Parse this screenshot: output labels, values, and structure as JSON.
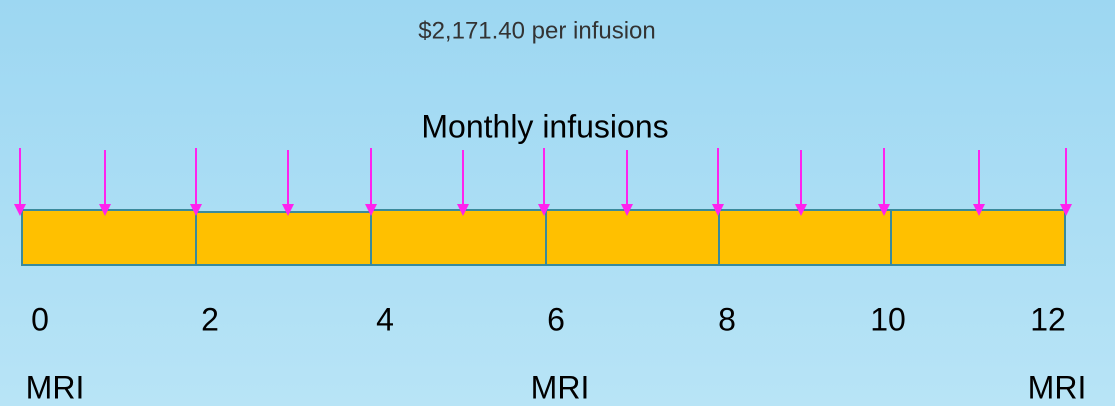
{
  "header": {
    "price": "$2,171.40 per infusion",
    "title": "Monthly infusions"
  },
  "timeline": {
    "months": [
      0,
      2,
      4,
      6,
      8,
      10,
      12
    ],
    "mri_labels": [
      "MRI",
      "MRI",
      "MRI"
    ]
  }
}
